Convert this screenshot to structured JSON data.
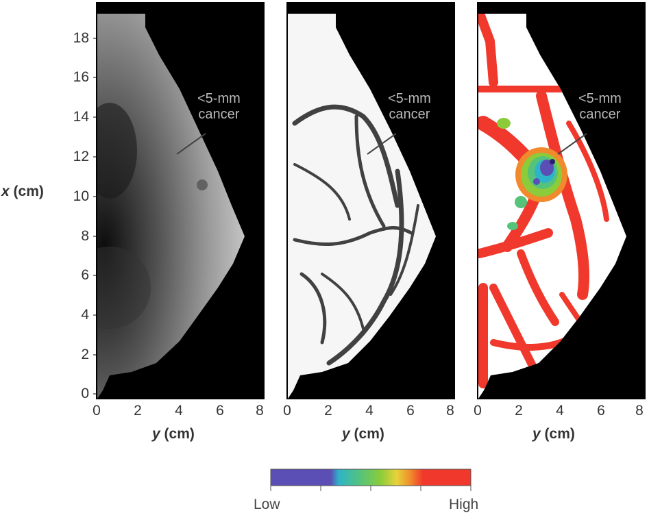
{
  "y_axis": {
    "label_var": "x",
    "label_unit": "(cm)",
    "ticks": [
      "0",
      "2",
      "4",
      "6",
      "8",
      "10",
      "12",
      "14",
      "16",
      "18"
    ]
  },
  "x_axis": {
    "label_var": "y",
    "label_unit": "(cm)",
    "ticks": [
      "0",
      "2",
      "4",
      "6",
      "8"
    ]
  },
  "panels": [
    {
      "annotation_line1": "<5-mm",
      "annotation_line2": "cancer"
    },
    {
      "annotation_line1": "<5-mm",
      "annotation_line2": "cancer"
    },
    {
      "annotation_line1": "<5-mm",
      "annotation_line2": "cancer"
    }
  ],
  "colorbar": {
    "low_label": "Low",
    "high_label": "High",
    "colors": [
      "#5b4fb5",
      "#5b4fb5",
      "#5b4fb5",
      "#2eb4c8",
      "#56c37a",
      "#8ccc3a",
      "#e7d23a",
      "#f08a2c",
      "#f0392c",
      "#f0392c",
      "#f0392c"
    ]
  }
}
